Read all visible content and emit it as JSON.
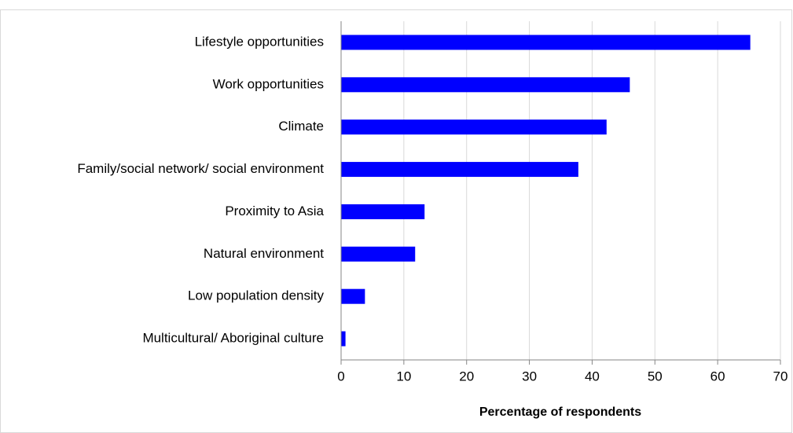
{
  "chart_data": {
    "type": "hbar",
    "x_label": "Percentage of respondents",
    "categories": [
      "Lifestyle opportunities",
      "Work opportunities",
      "Climate",
      "Family/social network/ social environment",
      "Proximity to Asia",
      "Natural environment",
      "Low population density",
      "Multicultural/ Aboriginal culture"
    ],
    "values": [
      65.2,
      46,
      42.3,
      37.8,
      13.3,
      11.8,
      3.8,
      0.7
    ],
    "color": "#0000ff",
    "xlim": [
      0,
      70
    ],
    "xticks": [
      0,
      10,
      20,
      30,
      40,
      50,
      60,
      70
    ],
    "grid": true
  }
}
